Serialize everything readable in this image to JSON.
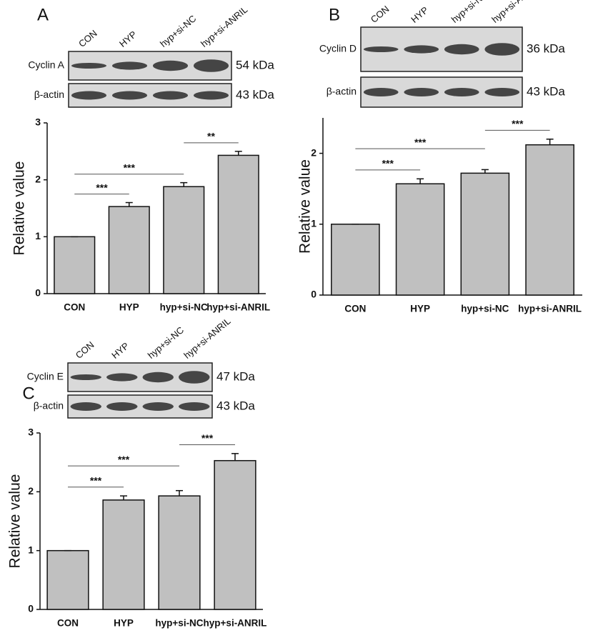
{
  "chart_data": [
    {
      "type": "bar",
      "panel": "A",
      "y_label": "Relative value",
      "categories": [
        "CON",
        "HYP",
        "hyp+si-NC",
        "hyp+si-ANRIL"
      ],
      "values": [
        1,
        1.53,
        1.88,
        2.43
      ],
      "errors": [
        0,
        0.07,
        0.07,
        0.07
      ],
      "color": "#c0c0c0",
      "ylim": [
        0,
        3
      ],
      "yticks": [
        0,
        1,
        2,
        3
      ],
      "blots": [
        {
          "protein": "Cyclin A",
          "size": "54 kDa"
        },
        {
          "protein": "β-actin",
          "size": "43 kDa"
        }
      ],
      "annotations": [
        {
          "text": "***",
          "from": "CON",
          "to": "HYP"
        },
        {
          "text": "***",
          "from": "CON",
          "to": "hyp+si-NC"
        },
        {
          "text": "**",
          "from": "hyp+si-NC",
          "to": "hyp+si-ANRIL"
        }
      ]
    },
    {
      "type": "bar",
      "panel": "B",
      "y_label": "Relative value",
      "categories": [
        "CON",
        "HYP",
        "hyp+si-NC",
        "hyp+si-ANRIL"
      ],
      "values": [
        1,
        1.57,
        1.72,
        2.12
      ],
      "errors": [
        0,
        0.07,
        0.05,
        0.08
      ],
      "color": "#c0c0c0",
      "ylim": [
        0,
        2.5
      ],
      "yticks": [
        0,
        1,
        2
      ],
      "blots": [
        {
          "protein": "Cyclin D",
          "size": "36 kDa"
        },
        {
          "protein": "β-actin",
          "size": "43 kDa"
        }
      ],
      "annotations": [
        {
          "text": "***",
          "from": "CON",
          "to": "HYP"
        },
        {
          "text": "***",
          "from": "CON",
          "to": "hyp+si-NC"
        },
        {
          "text": "***",
          "from": "hyp+si-NC",
          "to": "hyp+si-ANRIL"
        }
      ]
    },
    {
      "type": "bar",
      "panel": "C",
      "y_label": "Relative value",
      "categories": [
        "CON",
        "HYP",
        "hyp+si-NC",
        "hyp+si-ANRIL"
      ],
      "values": [
        1,
        1.86,
        1.93,
        2.53
      ],
      "errors": [
        0,
        0.07,
        0.09,
        0.12
      ],
      "color": "#c0c0c0",
      "ylim": [
        0,
        3
      ],
      "yticks": [
        0,
        1,
        2,
        3
      ],
      "blots": [
        {
          "protein": "Cyclin E",
          "size": "47 kDa"
        },
        {
          "protein": "β-actin",
          "size": "43 kDa"
        }
      ],
      "annotations": [
        {
          "text": "***",
          "from": "CON",
          "to": "HYP"
        },
        {
          "text": "***",
          "from": "CON",
          "to": "hyp+si-NC"
        },
        {
          "text": "***",
          "from": "hyp+si-NC",
          "to": "hyp+si-ANRIL"
        }
      ]
    }
  ]
}
